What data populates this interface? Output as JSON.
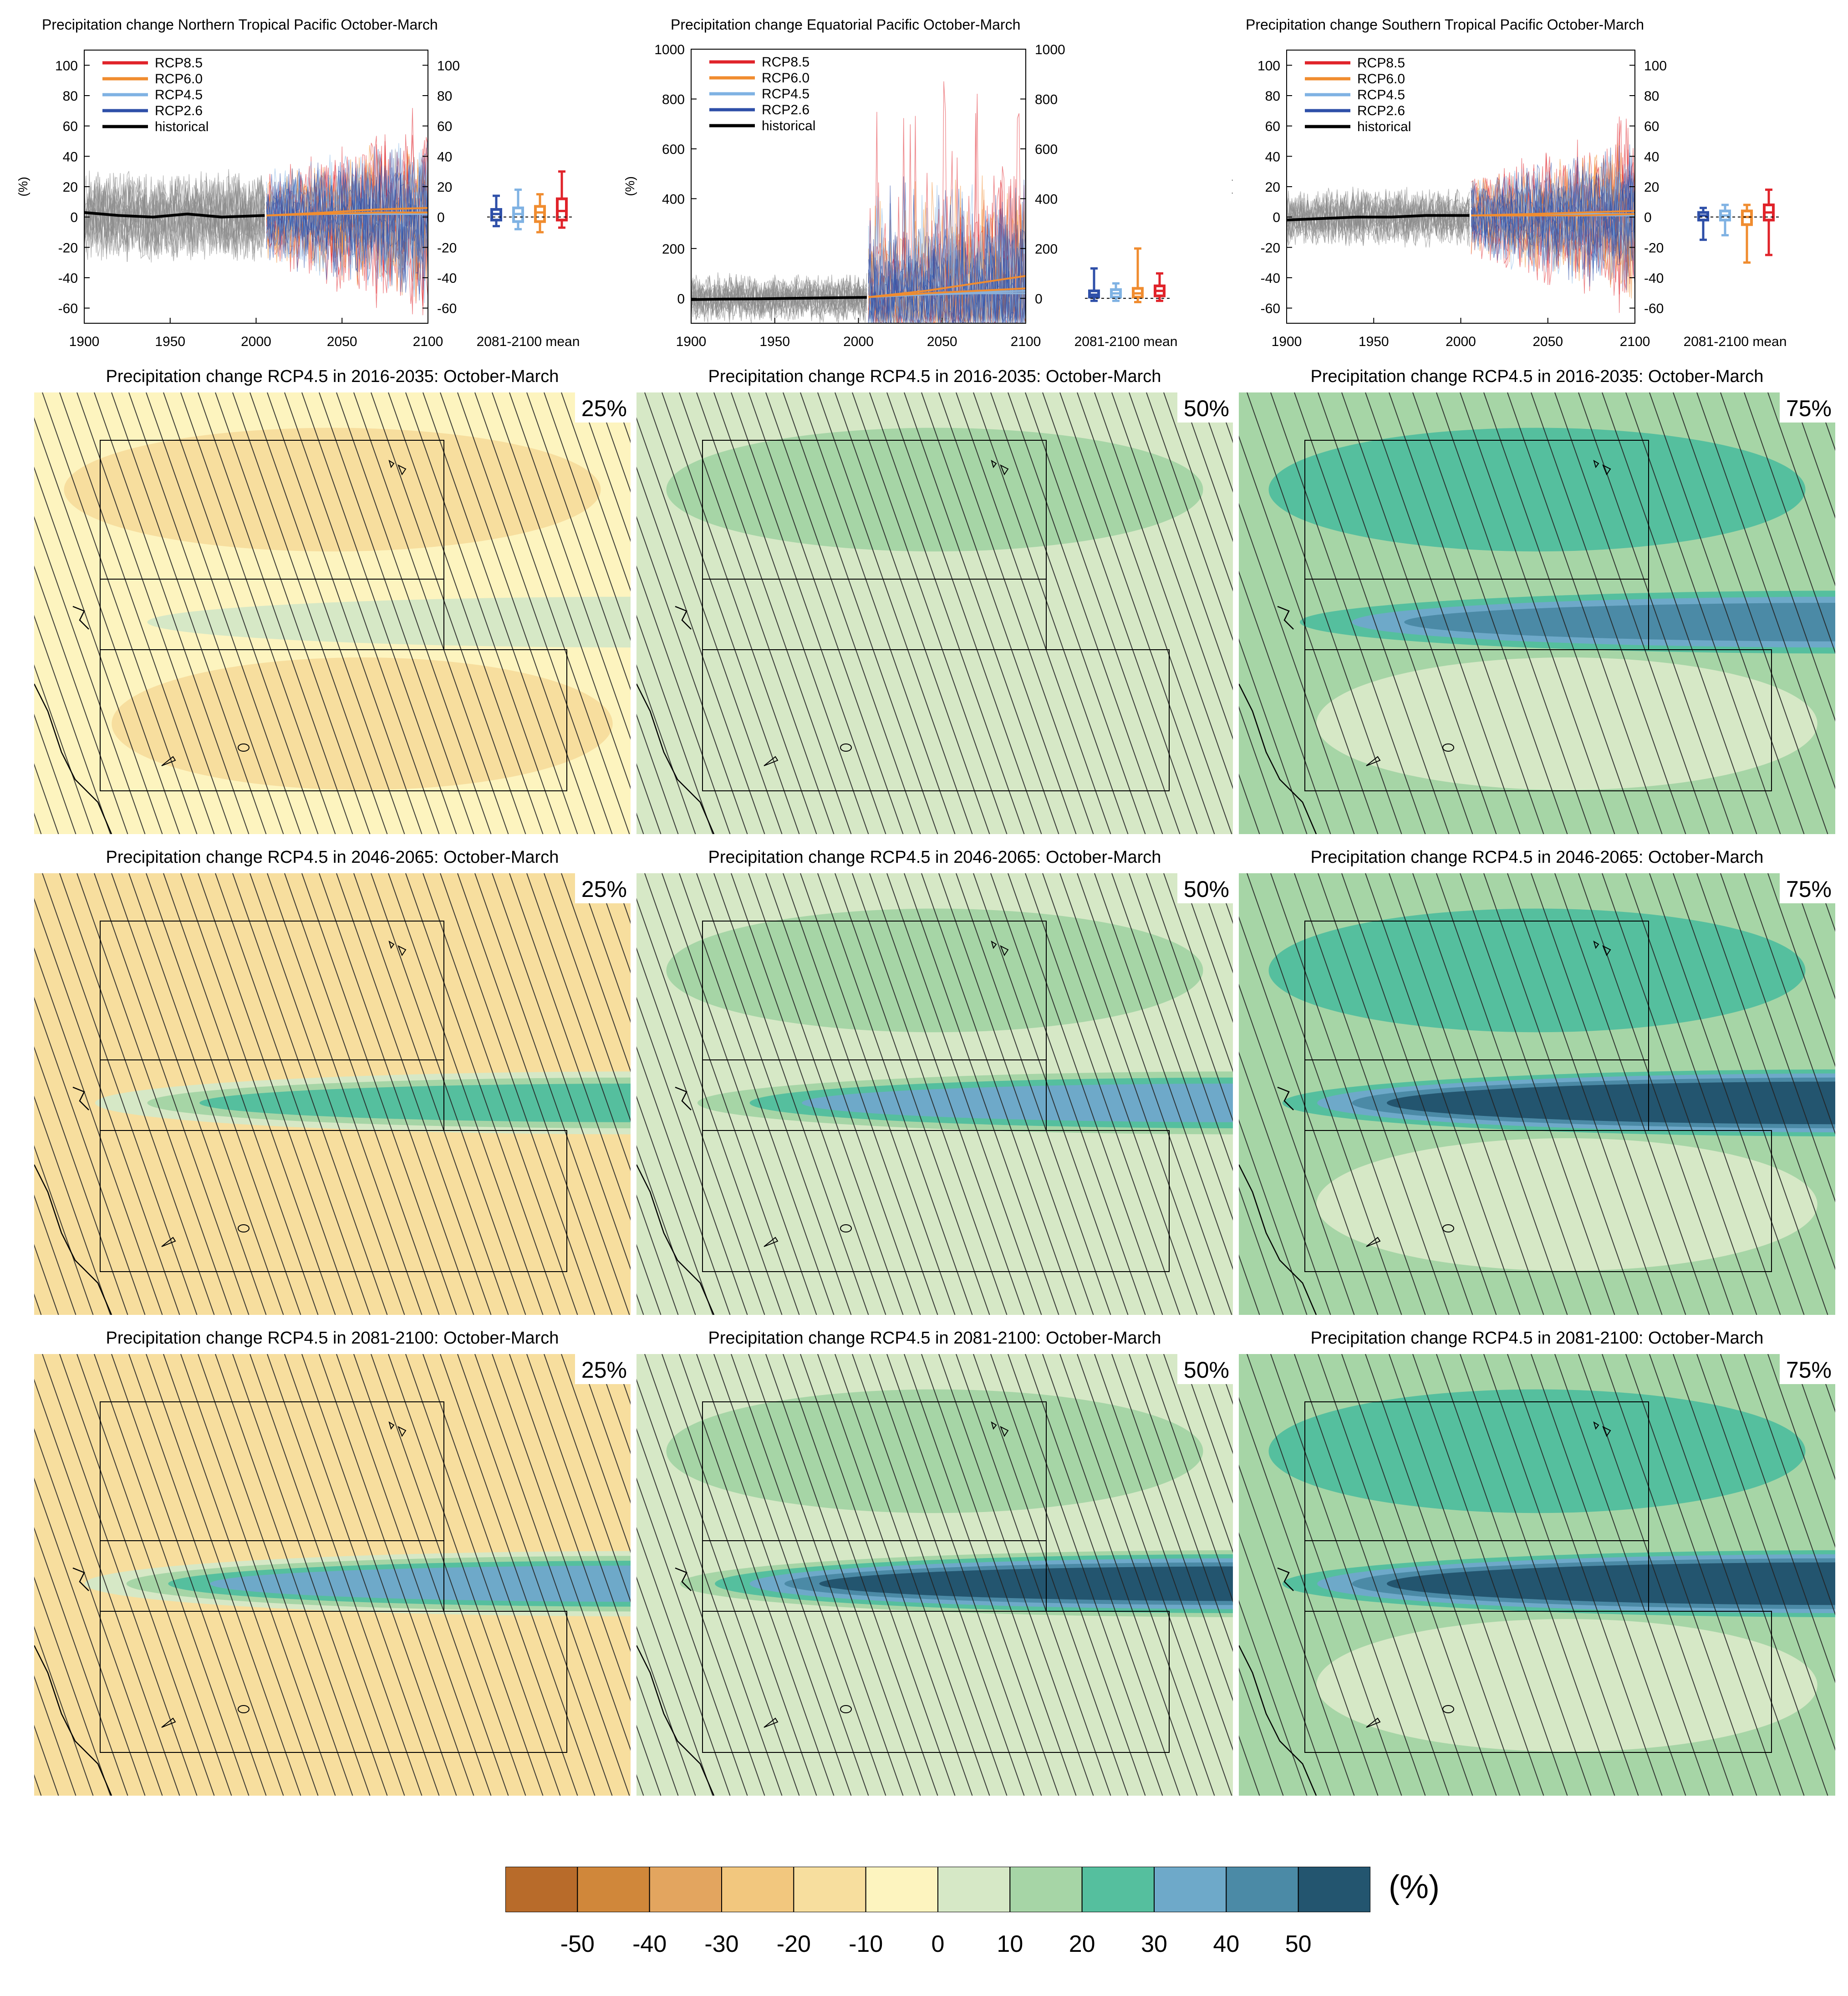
{
  "chart_data": [
    {
      "type": "line",
      "title": "Precipitation change Northern Tropical Pacific October-March",
      "ylabel": "(%)",
      "x_range": [
        1900,
        2100
      ],
      "ylim": [
        -70,
        110
      ],
      "x_ticks": [
        "1900",
        "1950",
        "2000",
        "2050",
        "2100"
      ],
      "y_ticks": [
        "-60",
        "-40",
        "-20",
        "0",
        "20",
        "40",
        "60",
        "80",
        "100"
      ],
      "box_label": "2081-2100 mean",
      "legend": [
        "RCP8.5",
        "RCP6.0",
        "RCP4.5",
        "RCP2.6",
        "historical"
      ],
      "series": [
        {
          "name": "historical",
          "x": [
            1900,
            1920,
            1940,
            1960,
            1980,
            2005
          ],
          "values": [
            3,
            1,
            0,
            2,
            0,
            1
          ]
        },
        {
          "name": "RCP2.6",
          "x": [
            2006,
            2040,
            2070,
            2100
          ],
          "values": [
            1,
            2,
            2,
            2
          ]
        },
        {
          "name": "RCP4.5",
          "x": [
            2006,
            2040,
            2070,
            2100
          ],
          "values": [
            1,
            2,
            3,
            3
          ]
        },
        {
          "name": "RCP6.0",
          "x": [
            2006,
            2040,
            2070,
            2100
          ],
          "values": [
            1,
            2,
            3,
            3
          ]
        },
        {
          "name": "RCP8.5",
          "x": [
            2006,
            2040,
            2070,
            2100
          ],
          "values": [
            1,
            3,
            5,
            6
          ]
        }
      ],
      "boxes": [
        {
          "name": "RCP2.6",
          "min": -6,
          "q1": -2,
          "median": 2,
          "q3": 5,
          "max": 14
        },
        {
          "name": "RCP4.5",
          "min": -8,
          "q1": -3,
          "median": 2,
          "q3": 6,
          "max": 18
        },
        {
          "name": "RCP6.0",
          "min": -10,
          "q1": -3,
          "median": 3,
          "q3": 7,
          "max": 15
        },
        {
          "name": "RCP8.5",
          "min": -7,
          "q1": -2,
          "median": 4,
          "q3": 12,
          "max": 30
        }
      ]
    },
    {
      "type": "line",
      "title": "Precipitation change Equatorial Pacific October-March",
      "ylabel": "(%)",
      "x_range": [
        1900,
        2100
      ],
      "ylim": [
        -100,
        1000
      ],
      "x_ticks": [
        "1900",
        "1950",
        "2000",
        "2050",
        "2100"
      ],
      "y_ticks": [
        "0",
        "200",
        "400",
        "600",
        "800",
        "1000"
      ],
      "box_label": "2081-2100 mean",
      "legend": [
        "RCP8.5",
        "RCP6.0",
        "RCP4.5",
        "RCP2.6",
        "historical"
      ],
      "series": [
        {
          "name": "historical",
          "x": [
            1900,
            1920,
            1940,
            1960,
            1980,
            2005
          ],
          "values": [
            -5,
            -3,
            -2,
            0,
            2,
            4
          ]
        },
        {
          "name": "RCP2.6",
          "x": [
            2006,
            2040,
            2070,
            2100
          ],
          "values": [
            5,
            15,
            20,
            20
          ]
        },
        {
          "name": "RCP4.5",
          "x": [
            2006,
            2040,
            2070,
            2100
          ],
          "values": [
            5,
            18,
            25,
            30
          ]
        },
        {
          "name": "RCP6.0",
          "x": [
            2006,
            2040,
            2070,
            2100
          ],
          "values": [
            5,
            20,
            30,
            40
          ]
        },
        {
          "name": "RCP8.5",
          "x": [
            2006,
            2040,
            2070,
            2100
          ],
          "values": [
            5,
            30,
            60,
            90
          ]
        }
      ],
      "boxes": [
        {
          "name": "RCP2.6",
          "min": -10,
          "q1": 5,
          "median": 15,
          "q3": 30,
          "max": 120
        },
        {
          "name": "RCP4.5",
          "min": -10,
          "q1": 5,
          "median": 20,
          "q3": 35,
          "max": 60
        },
        {
          "name": "RCP6.0",
          "min": -15,
          "q1": 5,
          "median": 20,
          "q3": 40,
          "max": 200
        },
        {
          "name": "RCP8.5",
          "min": -10,
          "q1": 10,
          "median": 30,
          "q3": 50,
          "max": 100
        }
      ]
    },
    {
      "type": "line",
      "title": "Precipitation change Southern Tropical Pacific October-March",
      "ylabel": "(%)",
      "x_range": [
        1900,
        2100
      ],
      "ylim": [
        -70,
        110
      ],
      "x_ticks": [
        "1900",
        "1950",
        "2000",
        "2050",
        "2100"
      ],
      "y_ticks": [
        "-60",
        "-40",
        "-20",
        "0",
        "20",
        "40",
        "60",
        "80",
        "100"
      ],
      "box_label": "2081-2100 mean",
      "legend": [
        "RCP8.5",
        "RCP6.0",
        "RCP4.5",
        "RCP2.6",
        "historical"
      ],
      "series": [
        {
          "name": "historical",
          "x": [
            1900,
            1920,
            1940,
            1960,
            1980,
            2005
          ],
          "values": [
            -2,
            -1,
            0,
            0,
            1,
            1
          ]
        },
        {
          "name": "RCP2.6",
          "x": [
            2006,
            2040,
            2070,
            2100
          ],
          "values": [
            1,
            1,
            1,
            1
          ]
        },
        {
          "name": "RCP4.5",
          "x": [
            2006,
            2040,
            2070,
            2100
          ],
          "values": [
            1,
            1,
            2,
            2
          ]
        },
        {
          "name": "RCP6.0",
          "x": [
            2006,
            2040,
            2070,
            2100
          ],
          "values": [
            1,
            1,
            1,
            2
          ]
        },
        {
          "name": "RCP8.5",
          "x": [
            2006,
            2040,
            2070,
            2100
          ],
          "values": [
            1,
            2,
            3,
            4
          ]
        }
      ],
      "boxes": [
        {
          "name": "RCP2.6",
          "min": -15,
          "q1": -2,
          "median": 1,
          "q3": 3,
          "max": 6
        },
        {
          "name": "RCP4.5",
          "min": -12,
          "q1": -2,
          "median": 1,
          "q3": 4,
          "max": 8
        },
        {
          "name": "RCP6.0",
          "min": -30,
          "q1": -5,
          "median": 0,
          "q3": 4,
          "max": 8
        },
        {
          "name": "RCP8.5",
          "min": -25,
          "q1": -2,
          "median": 3,
          "q3": 8,
          "max": 18
        }
      ]
    },
    {
      "type": "heatmap",
      "titles": [
        "Precipitation change RCP4.5 in 2016-2035: October-March",
        "Precipitation change RCP4.5 in 2046-2065: October-March",
        "Precipitation change RCP4.5 in 2081-2100: October-March"
      ],
      "percentiles": [
        "25%",
        "50%",
        "75%"
      ],
      "band_peak_change": [
        [
          0,
          10,
          40
        ],
        [
          20,
          40,
          60
        ],
        [
          30,
          60,
          60
        ]
      ],
      "colorbar": {
        "unit": "(%)",
        "ticks": [
          "-50",
          "-40",
          "-30",
          "-20",
          "-10",
          "0",
          "10",
          "20",
          "30",
          "40",
          "50"
        ],
        "colors": [
          "#b86b2a",
          "#d0873a",
          "#e3a55f",
          "#f2c77e",
          "#f7de9e",
          "#fdf4bf",
          "#d6e8c6",
          "#a6d5a6",
          "#55bf9e",
          "#6ea9c9",
          "#4b8aa6",
          "#23556f"
        ]
      }
    }
  ]
}
